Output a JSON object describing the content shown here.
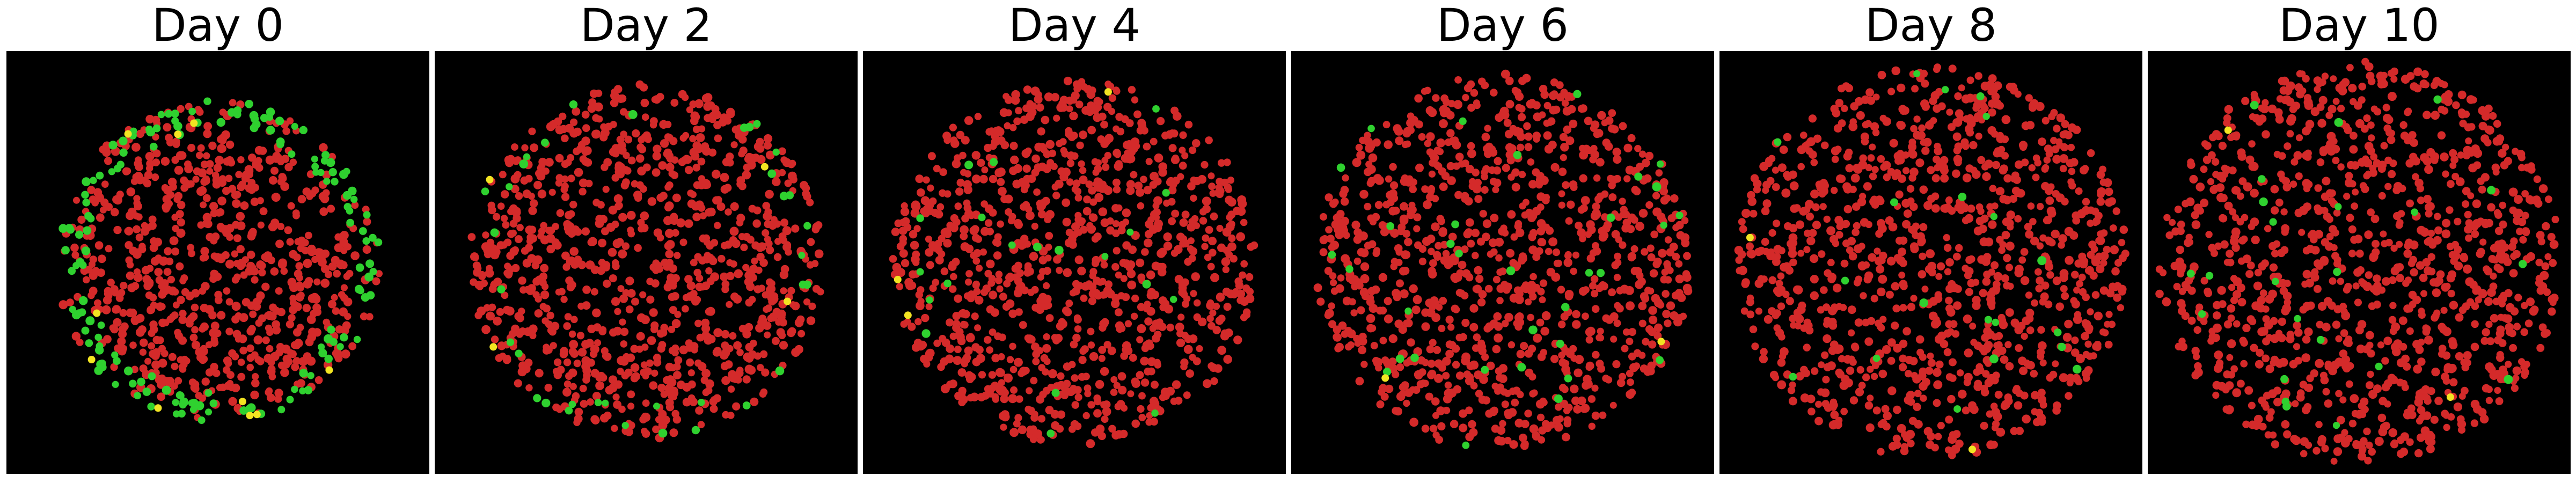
{
  "figure": {
    "panels": [
      {
        "title": "Day 0",
        "time_day": 0
      },
      {
        "title": "Day 2",
        "time_day": 2
      },
      {
        "title": "Day 4",
        "time_day": 4
      },
      {
        "title": "Day 6",
        "time_day": 6
      },
      {
        "title": "Day 8",
        "time_day": 8
      },
      {
        "title": "Day 10",
        "time_day": 10
      }
    ],
    "colors": {
      "background": "#000000",
      "cell_red": "#d42a2a",
      "cell_green": "#2fd12f",
      "cell_yellow": "#f2e422"
    }
  }
}
